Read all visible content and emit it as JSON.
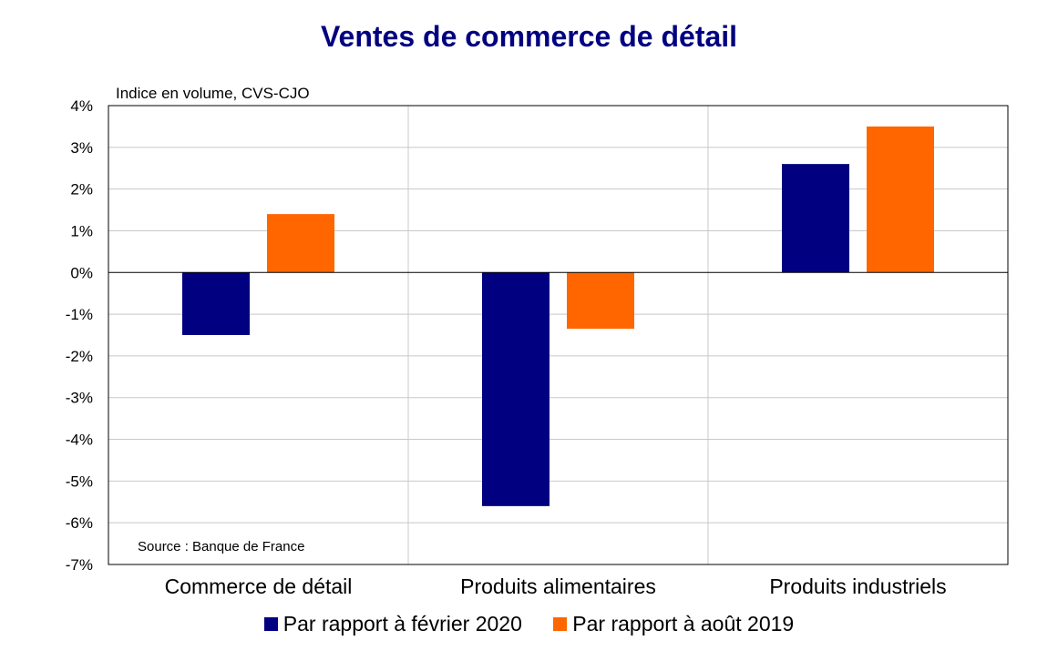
{
  "chart_data": {
    "type": "bar",
    "title": "Ventes de commerce de détail",
    "subtitle": "Indice en volume, CVS-CJO",
    "source": "Source : Banque de France",
    "categories": [
      "Commerce de détail",
      "Produits alimentaires",
      "Produits industriels"
    ],
    "series": [
      {
        "name": "Par rapport à février 2020",
        "color": "#000080",
        "values": [
          -1.5,
          -5.6,
          2.6
        ]
      },
      {
        "name": "Par rapport à août 2019",
        "color": "#FF6600",
        "values": [
          1.4,
          -1.35,
          3.5
        ]
      }
    ],
    "ylim": [
      -7,
      4
    ],
    "yticks": [
      4,
      3,
      2,
      1,
      0,
      -1,
      -2,
      -3,
      -4,
      -5,
      -6,
      -7
    ],
    "ytick_labels": [
      "4%",
      "3%",
      "2%",
      "1%",
      "0%",
      "-1%",
      "-2%",
      "-3%",
      "-4%",
      "-5%",
      "-6%",
      "-7%"
    ],
    "grid": true,
    "legend": "bottom"
  }
}
